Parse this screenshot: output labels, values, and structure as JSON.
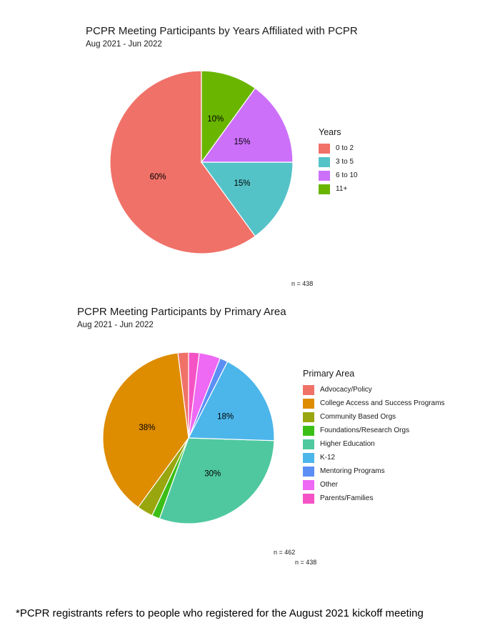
{
  "chart_data": [
    {
      "type": "pie",
      "title": "PCPR Meeting Participants by Years Affiliated with PCPR",
      "subtitle": "Aug 2021 - Jun 2022",
      "legend_title": "Years",
      "legend_position": "right",
      "note": "n = 438",
      "slices": [
        {
          "label": "0 to 2",
          "value": 60,
          "color": "#F07168",
          "value_label": "60%"
        },
        {
          "label": "3 to 5",
          "value": 15,
          "color": "#54C3C8",
          "value_label": "15%"
        },
        {
          "label": "6 to 10",
          "value": 15,
          "color": "#CC70FA",
          "value_label": "15%"
        },
        {
          "label": "11+",
          "value": 10,
          "color": "#6AB500",
          "value_label": "10%"
        }
      ]
    },
    {
      "type": "pie",
      "title": "PCPR Meeting Participants by Primary Area",
      "subtitle": "Aug 2021 - Jun 2022",
      "legend_title": "Primary Area",
      "legend_position": "right",
      "notes": [
        "n = 462",
        "n = 438"
      ],
      "slices": [
        {
          "label": "Advocacy/Policy",
          "value": 2,
          "color": "#F07168",
          "value_label": ""
        },
        {
          "label": "College Access and Success Programs",
          "value": 38,
          "color": "#DE8C00",
          "value_label": "38%"
        },
        {
          "label": "Community Based Orgs",
          "value": 3,
          "color": "#9AA60E",
          "value_label": ""
        },
        {
          "label": "Foundations/Research Orgs",
          "value": 1.5,
          "color": "#3BBF16",
          "value_label": ""
        },
        {
          "label": "Higher Education",
          "value": 30,
          "color": "#4FC8A0",
          "value_label": "30%"
        },
        {
          "label": "K-12",
          "value": 18,
          "color": "#4CB6EA",
          "value_label": "18%"
        },
        {
          "label": "Mentoring Programs",
          "value": 1.5,
          "color": "#5B8FF5",
          "value_label": ""
        },
        {
          "label": "Other",
          "value": 4,
          "color": "#EE69F4",
          "value_label": ""
        },
        {
          "label": "Parents/Families",
          "value": 2,
          "color": "#F553C5",
          "value_label": ""
        }
      ]
    }
  ],
  "footnote": "*PCPR registrants refers to people who registered for the August 2021 kickoff meeting"
}
